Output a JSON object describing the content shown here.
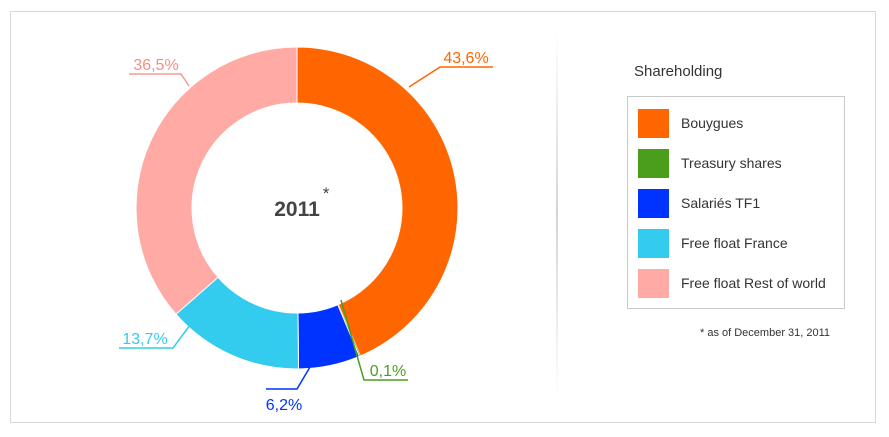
{
  "chart_data": {
    "type": "pie",
    "center_label": "2011",
    "center_label_mark": "*",
    "slices": [
      {
        "name": "Bouygues",
        "value": 43.6,
        "label": "43,6%",
        "color": "#ff6600"
      },
      {
        "name": "Treasury shares",
        "value": 0.1,
        "label": "0,1%",
        "color": "#4a9e1c"
      },
      {
        "name": "Salariés TF1",
        "value": 6.2,
        "label": "6,2%",
        "color": "#0033ff"
      },
      {
        "name": "Free float France",
        "value": 13.7,
        "label": "13,7%",
        "color": "#33ccee"
      },
      {
        "name": "Free float Rest of world",
        "value": 36.5,
        "label": "36,5%",
        "color": "#ffaaa5"
      }
    ],
    "legend_position": "right"
  },
  "legend": {
    "title": "Shareholding",
    "items": [
      "Bouygues",
      "Treasury shares",
      "Salariés TF1",
      "Free float France",
      "Free float Rest of world"
    ]
  },
  "footnote": "* as of December 31, 2011"
}
